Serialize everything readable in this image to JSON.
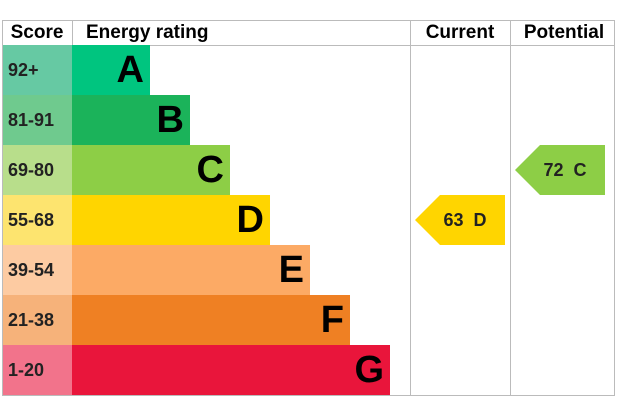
{
  "header": {
    "score": "Score",
    "rating": "Energy rating",
    "current": "Current",
    "potential": "Potential"
  },
  "bands": [
    {
      "score": "92+",
      "letter": "A",
      "color": "#00c57f",
      "score_color": "#66c9a3"
    },
    {
      "score": "81-91",
      "letter": "B",
      "color": "#1bb35a",
      "score_color": "#6fca8e"
    },
    {
      "score": "69-80",
      "letter": "C",
      "color": "#8dce46",
      "score_color": "#b8de8b"
    },
    {
      "score": "55-68",
      "letter": "D",
      "color": "#ffd500",
      "score_color": "#fde46f"
    },
    {
      "score": "39-54",
      "letter": "E",
      "color": "#fcaa65",
      "score_color": "#fdcba2"
    },
    {
      "score": "21-38",
      "letter": "F",
      "color": "#ef8023",
      "score_color": "#f6b27a"
    },
    {
      "score": "1-20",
      "letter": "G",
      "color": "#e9153b",
      "score_color": "#f2738b"
    }
  ],
  "current": {
    "value": 63,
    "letter": "D"
  },
  "potential": {
    "value": 72,
    "letter": "C"
  }
}
